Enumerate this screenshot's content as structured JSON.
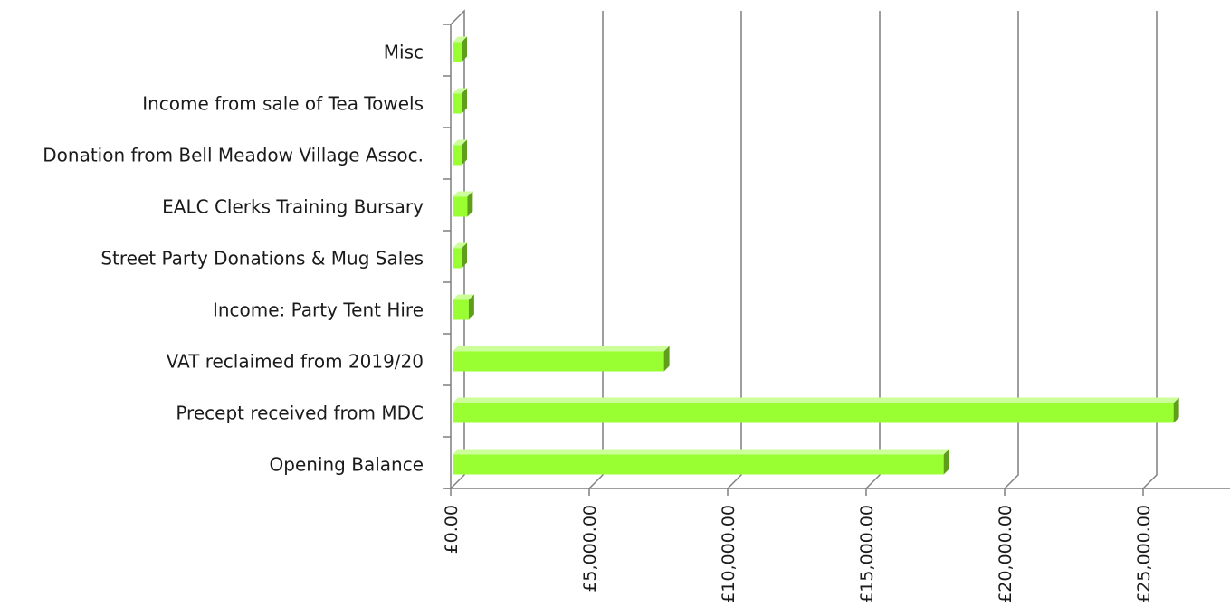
{
  "chart_data": {
    "type": "bar",
    "orientation": "horizontal",
    "style": "3d",
    "categories": [
      "Misc",
      "Income from sale of Tea Towels",
      "Donation from Bell Meadow Village Assoc.",
      "EALC Clerks Training Bursary",
      "Street Party Donations & Mug Sales",
      "Income: Party Tent Hire",
      "VAT reclaimed from 2019/20",
      "Precept received from MDC",
      "Opening Balance"
    ],
    "values": [
      300,
      150,
      100,
      600,
      350,
      650,
      7700,
      26100,
      17800
    ],
    "xlim": [
      0,
      28000
    ],
    "x_ticks": [
      0,
      5000,
      10000,
      15000,
      20000,
      25000
    ],
    "x_tick_labels": [
      "£0.00",
      "£5,000.00",
      "£10,000.00",
      "£15,000.00",
      "£20,000.00",
      "£25,000.00"
    ],
    "grid": true,
    "legend": "none",
    "bar_color": "#99ff33",
    "bar_top_color": "#ccff99",
    "bar_side_color": "#5e9e1a",
    "grid_color": "#7f7f7f"
  }
}
